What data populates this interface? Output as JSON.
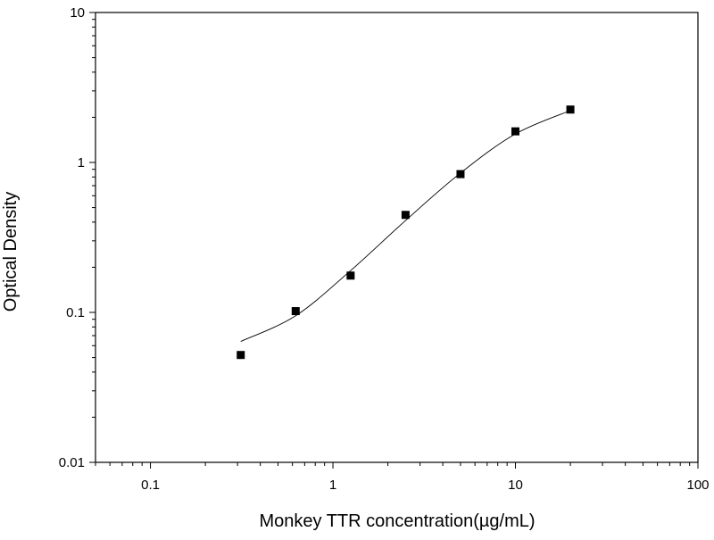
{
  "chart_data": {
    "type": "scatter",
    "title": "",
    "xlabel": "Monkey TTR concentration(µg/mL)",
    "ylabel": "Optical Density",
    "x_scale": "log",
    "y_scale": "log",
    "xlim": [
      0.05,
      100
    ],
    "ylim": [
      0.01,
      10
    ],
    "x_ticks": [
      0.1,
      1,
      10,
      100
    ],
    "x_tick_labels": [
      "0.1",
      "1",
      "10",
      "100"
    ],
    "y_ticks": [
      0.01,
      0.1,
      1,
      10
    ],
    "y_tick_labels": [
      "0.01",
      "0.1",
      "1",
      "10"
    ],
    "grid": false,
    "legend": "none",
    "series": [
      {
        "marker": "square",
        "color": "#000000",
        "x": [
          0.3125,
          0.625,
          1.25,
          2.5,
          5,
          10,
          20
        ],
        "y": [
          0.052,
          0.102,
          0.176,
          0.447,
          0.836,
          1.612,
          2.253
        ]
      }
    ],
    "fit_curve": {
      "color": "#000000",
      "x": [
        0.3125,
        0.625,
        1.25,
        2.5,
        5,
        10,
        20
      ],
      "y": [
        0.064,
        0.095,
        0.19,
        0.41,
        0.85,
        1.55,
        2.22
      ]
    }
  }
}
